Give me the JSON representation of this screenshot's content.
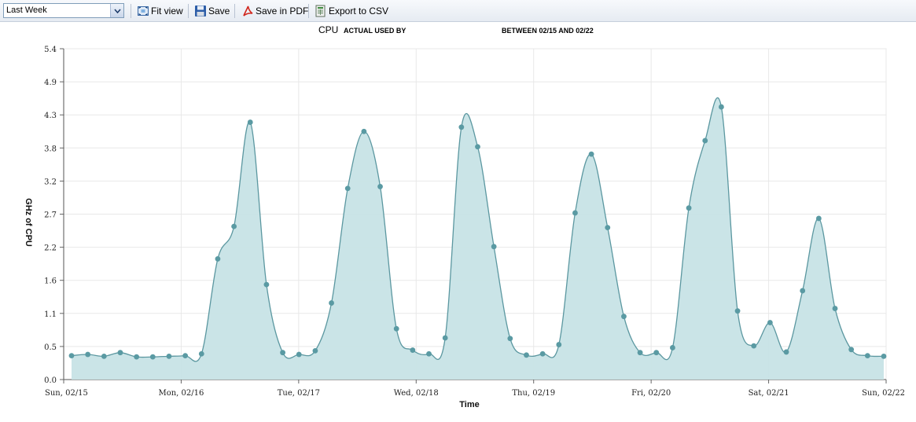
{
  "toolbar": {
    "period_value": "Last Week",
    "fit_label": "Fit view",
    "save_label": "Save",
    "pdf_label": "Save in PDF",
    "csv_label": "Export to CSV"
  },
  "colors": {
    "area_fill": "#c7e3e6",
    "line": "#5b97a0",
    "marker": "#5a9aa3"
  },
  "chart_data": {
    "type": "area",
    "title_parts": [
      "CPU",
      "ACTUAL USED BY",
      "BETWEEN 02/15 AND 02/22"
    ],
    "xlabel": "Time",
    "ylabel": "GHz of CPU",
    "ylim": [
      0,
      5.4
    ],
    "y_ticks": [
      "0.0",
      "0.5",
      "1.1",
      "1.6",
      "2.2",
      "2.7",
      "3.2",
      "3.8",
      "4.3",
      "4.9",
      "5.4"
    ],
    "x_tick_labels": [
      "Sun, 02/15",
      "Mon, 02/16",
      "Tue, 02/17",
      "Wed, 02/18",
      "Thu, 02/19",
      "Fri, 02/20",
      "Sat, 02/21",
      "Sun, 02/22"
    ],
    "grid": true,
    "series": [
      {
        "values": [
          0.39,
          0.41,
          0.38,
          0.44,
          0.37,
          0.37,
          0.38,
          0.39,
          0.42,
          1.97,
          2.5,
          4.2,
          1.55,
          0.44,
          0.41,
          0.47,
          1.25,
          3.12,
          4.05,
          3.15,
          0.83,
          0.48,
          0.42,
          0.68,
          4.12,
          3.8,
          2.17,
          0.67,
          0.4,
          0.42,
          0.57,
          2.72,
          3.68,
          2.48,
          1.03,
          0.44,
          0.44,
          0.52,
          2.8,
          3.9,
          4.45,
          1.12,
          0.55,
          0.93,
          0.45,
          1.45,
          2.63,
          1.16,
          0.49,
          0.39,
          0.38
        ]
      }
    ]
  }
}
